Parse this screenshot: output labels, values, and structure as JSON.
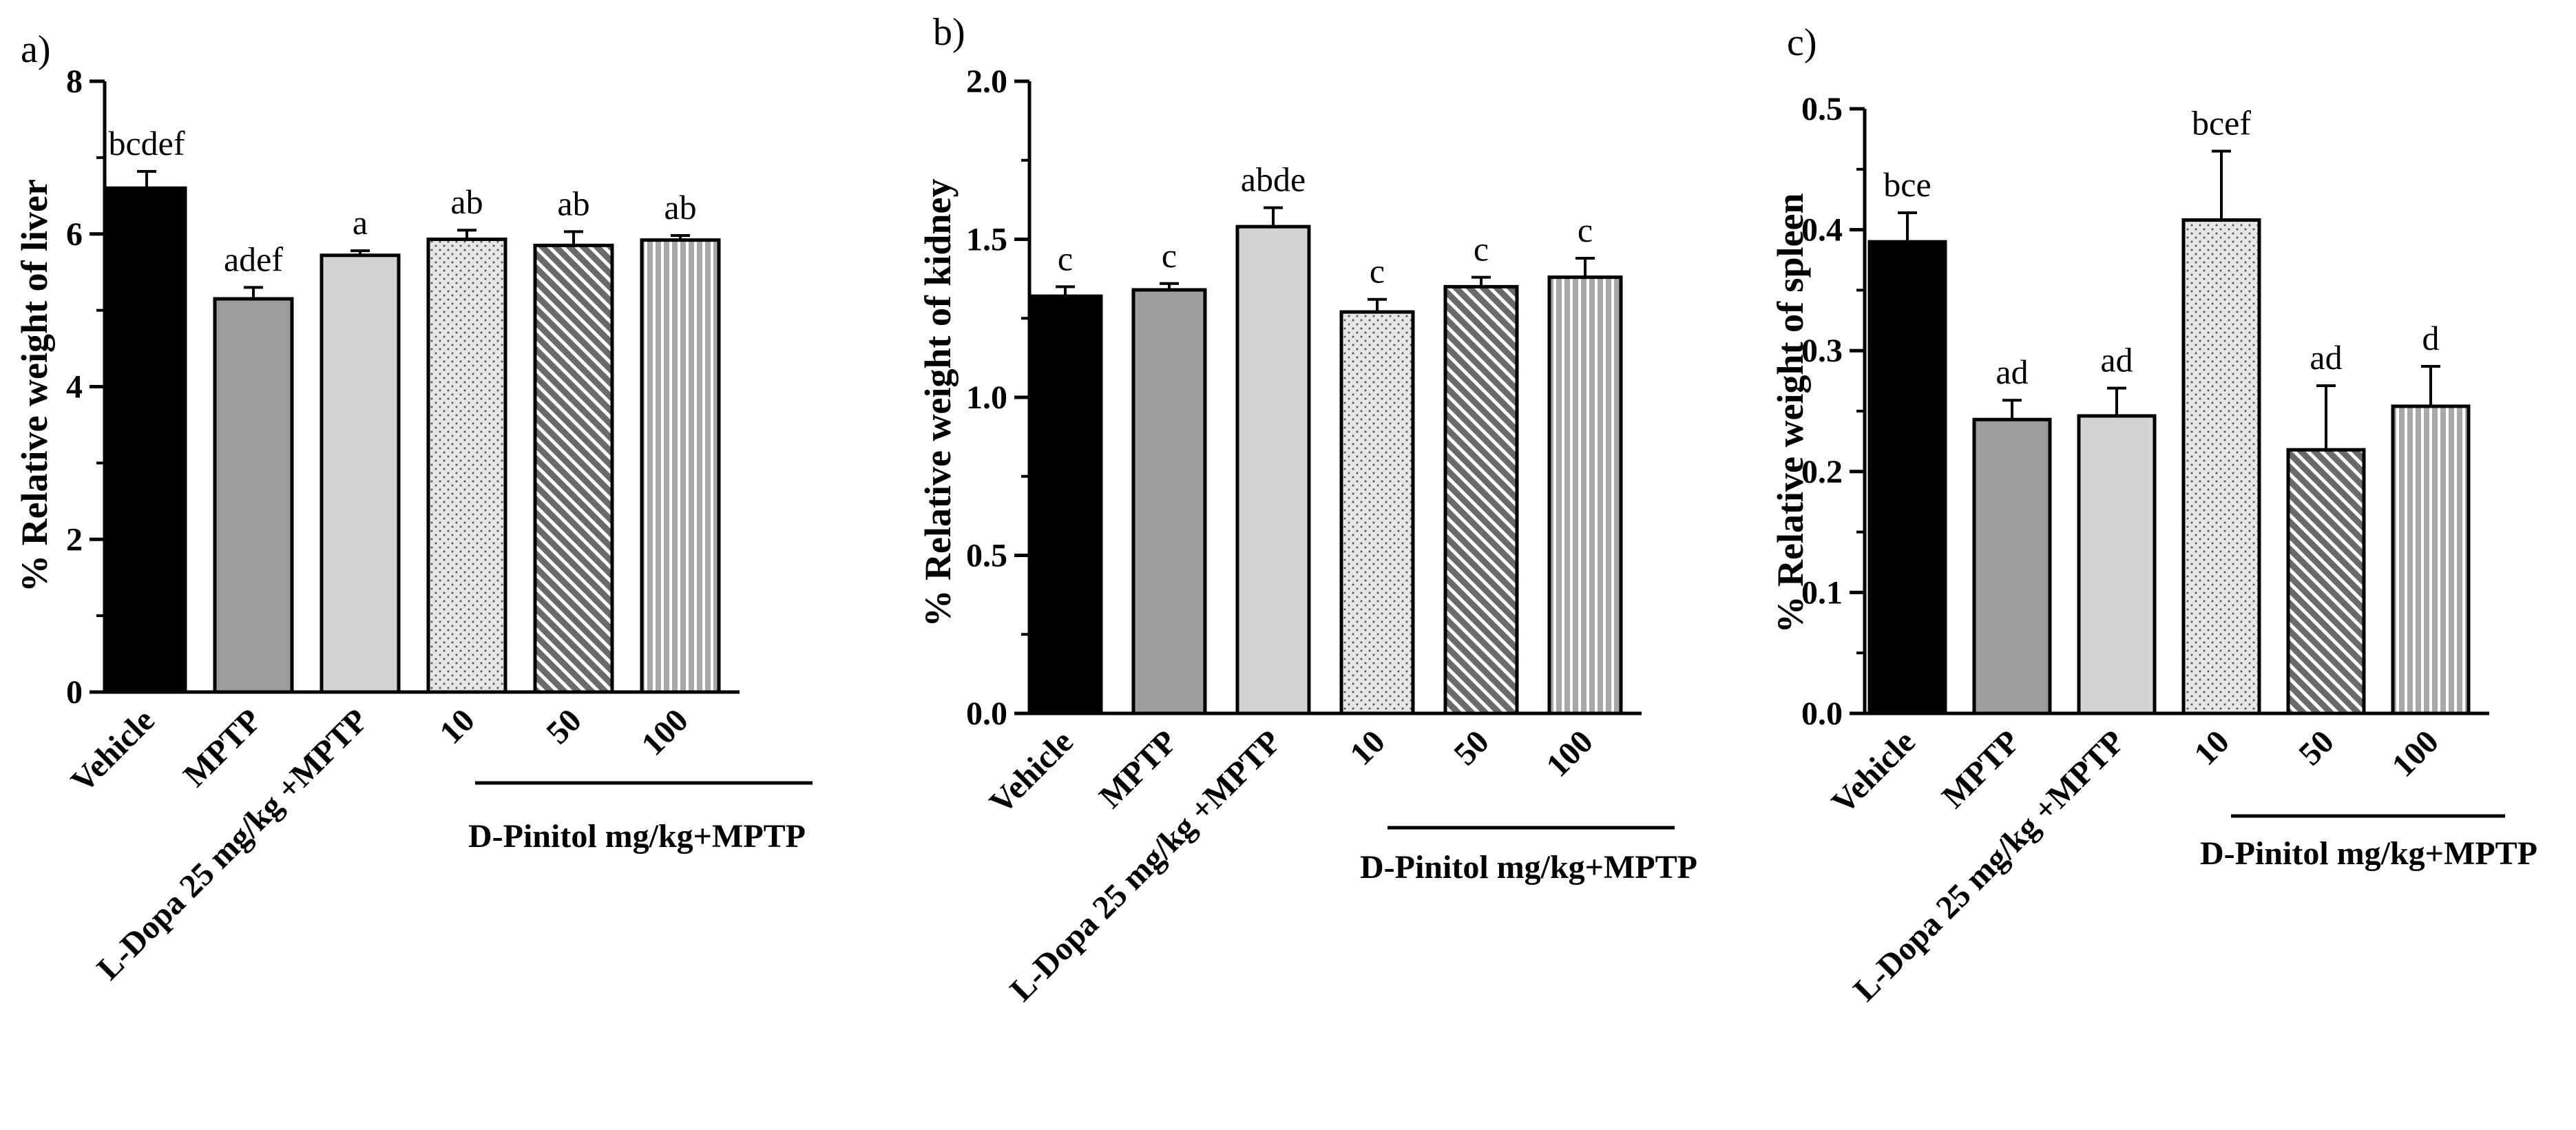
{
  "chart_data": [
    {
      "type": "bar",
      "panel_label": "a)",
      "ylabel": "%  Relative weight of liver",
      "ylim": [
        0,
        8
      ],
      "yticks": [
        "0",
        "2",
        "4",
        "6",
        "8"
      ],
      "categories": [
        "Vehicle",
        "MPTP",
        "L-Dopa 25 mg/kg +MPTP",
        "10",
        "50",
        "100"
      ],
      "group_label": "D-Pinitol mg/kg+MPTP",
      "values": [
        6.6,
        5.15,
        5.72,
        5.93,
        5.85,
        5.92
      ],
      "errors": [
        0.22,
        0.15,
        0.06,
        0.12,
        0.18,
        0.06
      ],
      "annotations": [
        "bcdef",
        "adef",
        "a",
        "ab",
        "ab",
        "ab"
      ]
    },
    {
      "type": "bar",
      "panel_label": "b)",
      "ylabel": "%  Relative weight of kidney",
      "ylim": [
        0,
        2.0
      ],
      "yticks": [
        "0.0",
        "0.5",
        "1.0",
        "1.5",
        "2.0"
      ],
      "categories": [
        "Vehicle",
        "MPTP",
        "L-Dopa 25 mg/kg +MPTP",
        "10",
        "50",
        "100"
      ],
      "group_label": "D-Pinitol mg/kg+MPTP",
      "values": [
        1.32,
        1.34,
        1.54,
        1.27,
        1.35,
        1.38
      ],
      "errors": [
        0.03,
        0.02,
        0.06,
        0.04,
        0.03,
        0.06
      ],
      "annotations": [
        "c",
        "c",
        "abde",
        "c",
        "c",
        "c"
      ]
    },
    {
      "type": "bar",
      "panel_label": "c)",
      "ylabel": "%  Relative weight of spleen",
      "ylim": [
        0,
        0.5
      ],
      "yticks": [
        "0.0",
        "0.1",
        "0.2",
        "0.3",
        "0.4",
        "0.5"
      ],
      "categories": [
        "Vehicle",
        "MPTP",
        "L-Dopa 25 mg/kg +MPTP",
        "10",
        "50",
        "100"
      ],
      "group_label": "D-Pinitol mg/kg+MPTP",
      "values": [
        0.39,
        0.243,
        0.246,
        0.408,
        0.218,
        0.254
      ],
      "errors": [
        0.024,
        0.016,
        0.023,
        0.057,
        0.053,
        0.033
      ],
      "annotations": [
        "bce",
        "ad",
        "ad",
        "bcef",
        "ad",
        "d"
      ]
    }
  ],
  "style": {
    "bar_colors": [
      "#000000",
      "#9c9c9c",
      "#d4d4d4",
      "#e6e6e6",
      "#6a6a6a",
      "#a8a8a8"
    ],
    "patterns": [
      "solid",
      "solid",
      "solid",
      "dots",
      "diagonal",
      "vertical"
    ]
  }
}
